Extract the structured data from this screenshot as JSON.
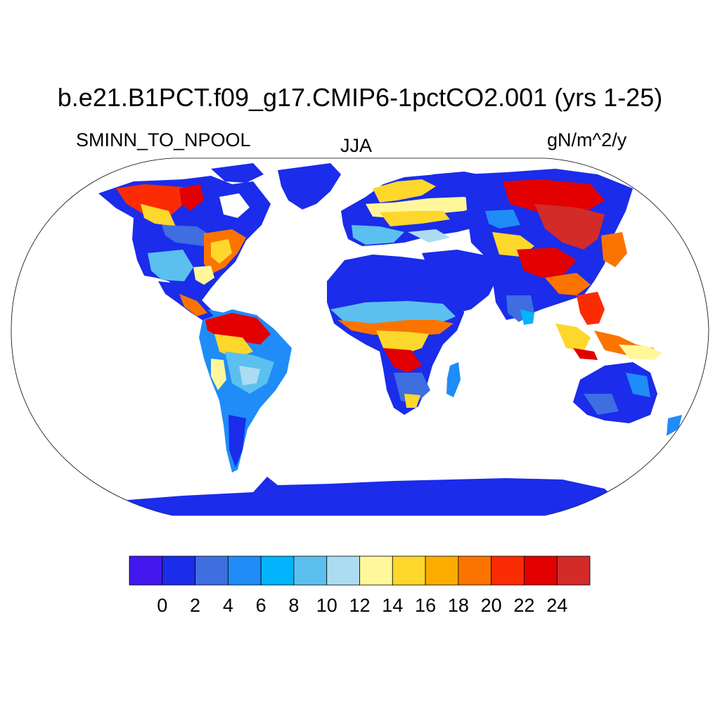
{
  "title": "b.e21.B1PCT.f09_g17.CMIP6-1pctCO2.001 (yrs 1-25)",
  "variable": "SMINN_TO_NPOOL",
  "season": "JJA",
  "units": "gN/m^2/y",
  "colorbar": {
    "colors": [
      "#4417ee",
      "#1b2cea",
      "#3e6ee0",
      "#1f8cf8",
      "#02b4fb",
      "#5bc0ef",
      "#abdcf2",
      "#fff79a",
      "#fdd72c",
      "#fcac00",
      "#fb7400",
      "#fb2c04",
      "#e20000",
      "#d32a2a"
    ],
    "tick_labels": [
      "0",
      "2",
      "4",
      "6",
      "8",
      "10",
      "12",
      "14",
      "16",
      "18",
      "20",
      "22",
      "24"
    ]
  }
}
